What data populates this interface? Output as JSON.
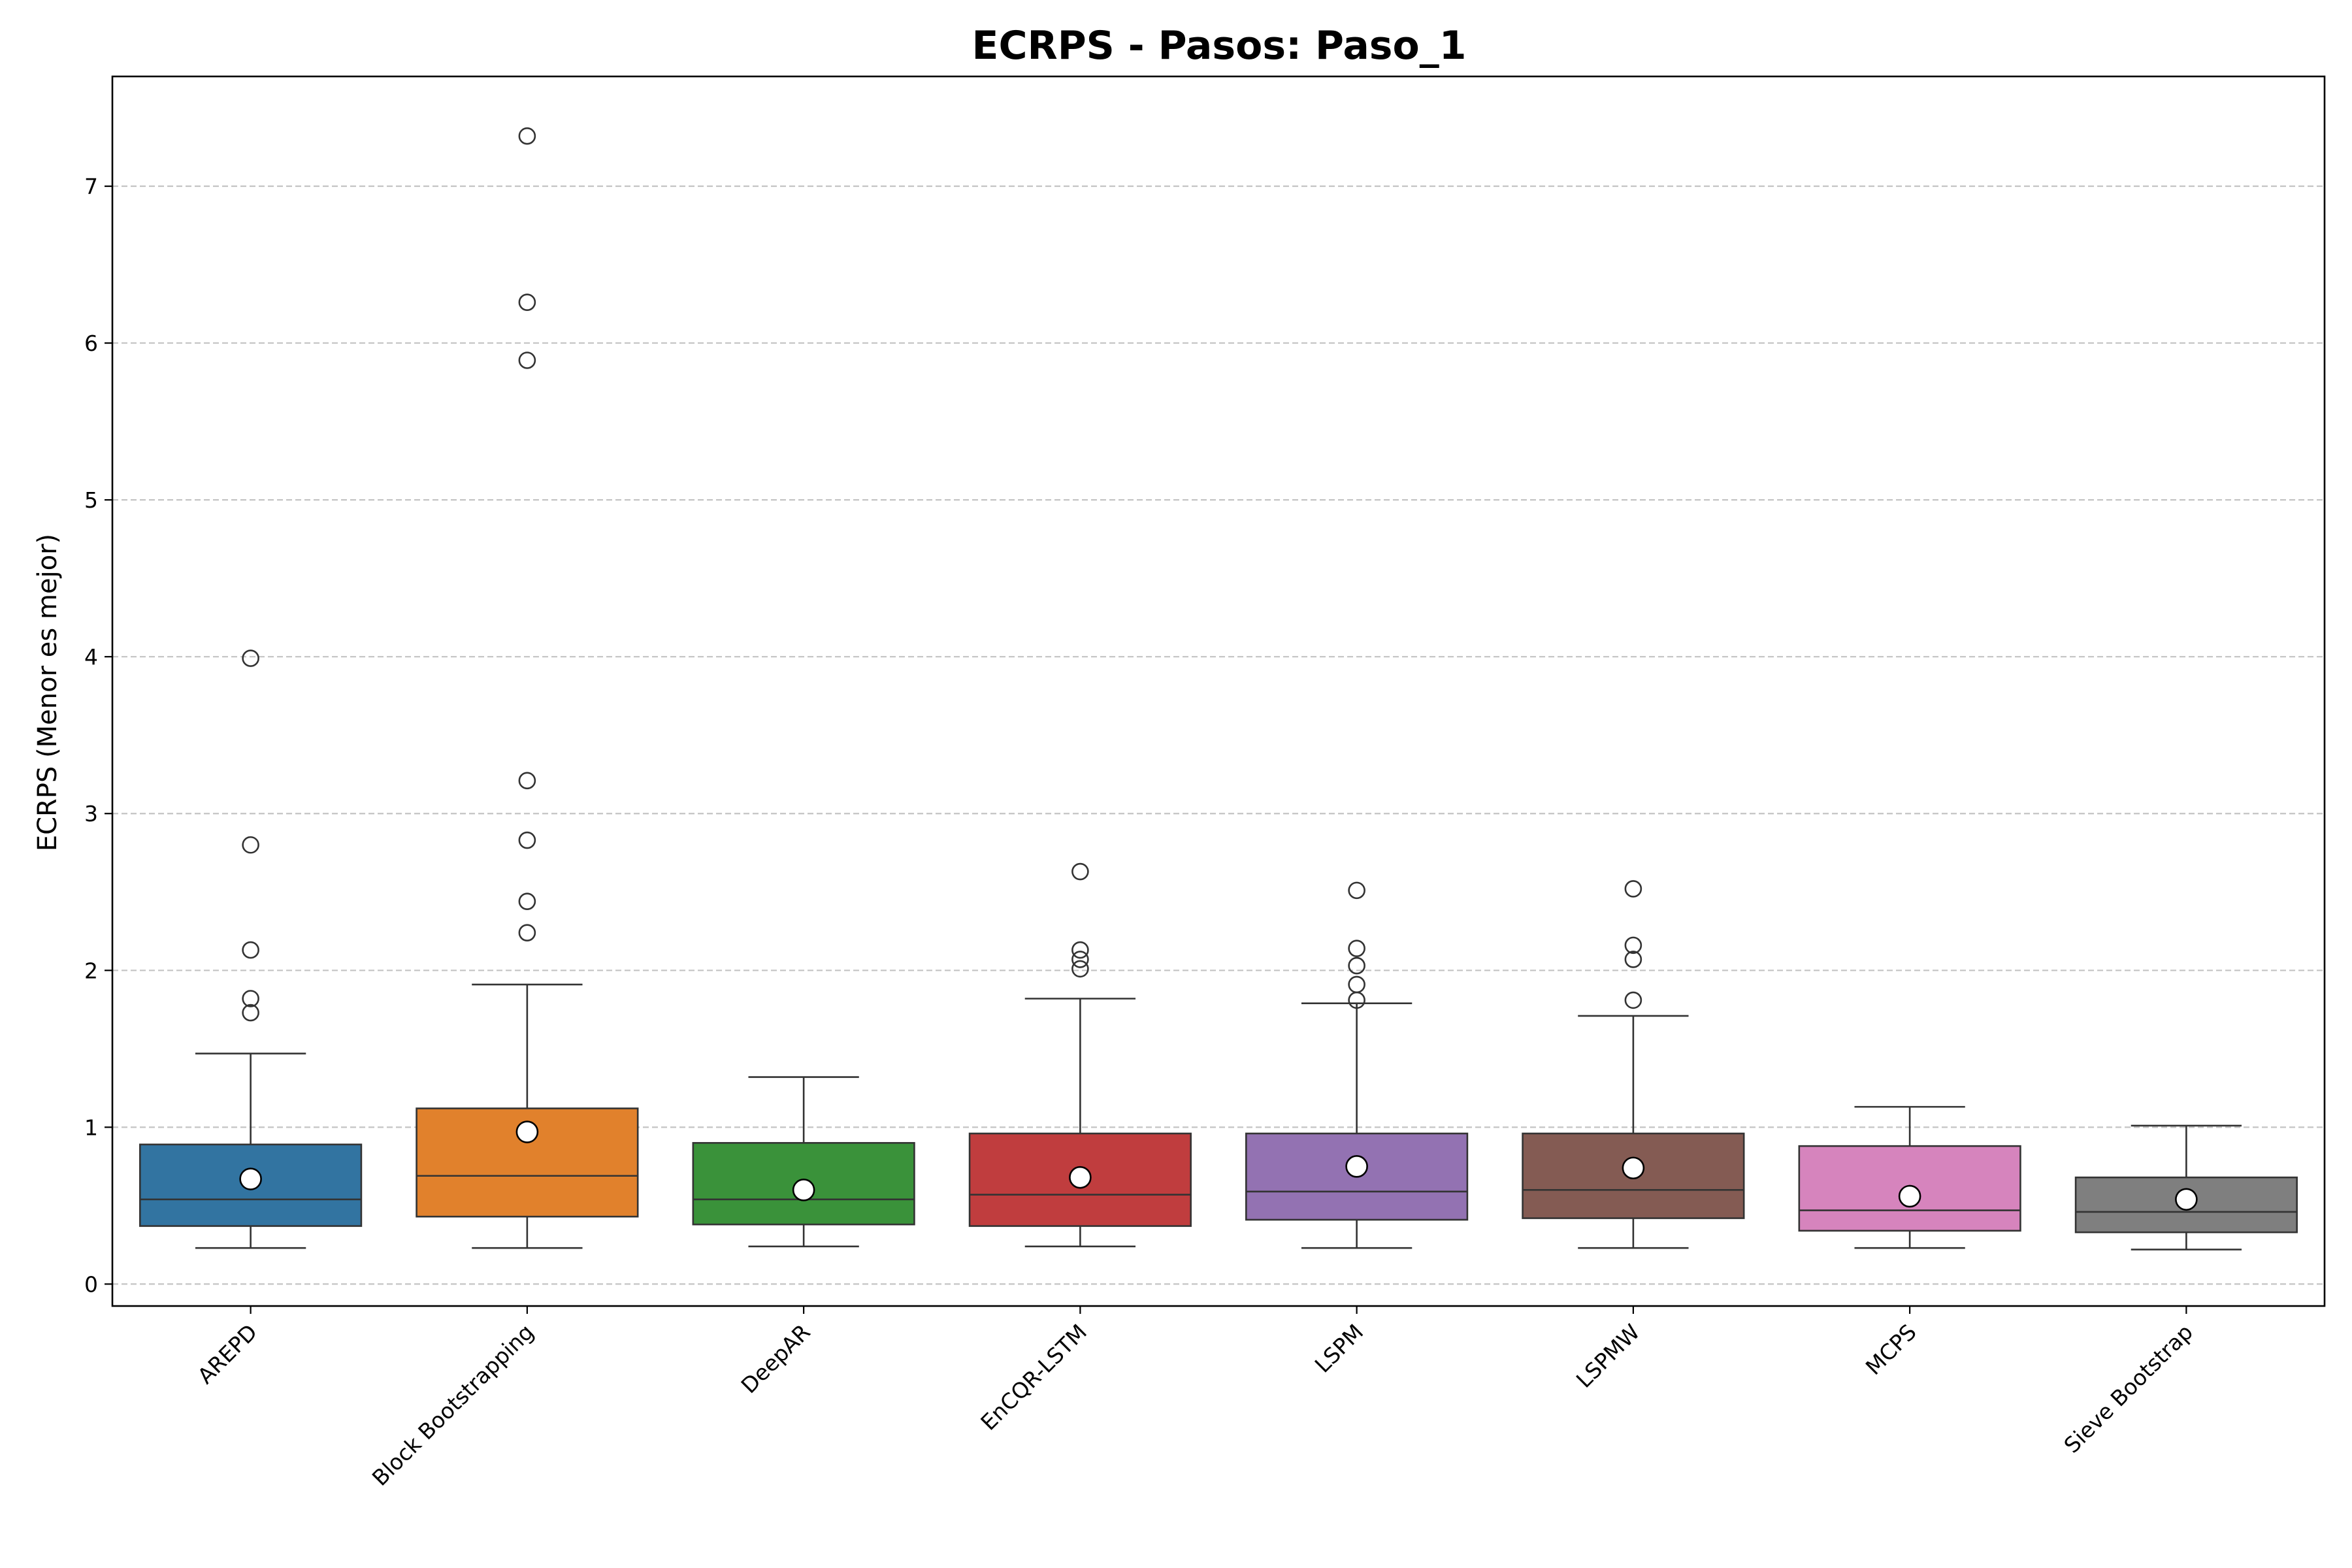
{
  "chart_data": {
    "type": "box",
    "title": "ECRPS - Pasos: Paso_1",
    "xlabel": "",
    "ylabel": "ECRPS (Menor es mejor)",
    "ylim": [
      -0.14,
      7.7
    ],
    "yticks": [
      0,
      1,
      2,
      3,
      4,
      5,
      6,
      7
    ],
    "grid": "y-dashed",
    "legend": "none",
    "categories": [
      "AREPD",
      "Block Bootstrapping",
      "DeepAR",
      "EnCQR-LSTM",
      "LSPM",
      "LSPMW",
      "MCPS",
      "Sieve Bootstrap"
    ],
    "colors": [
      "#3274a1",
      "#e1812c",
      "#3a923a",
      "#c03d3e",
      "#9372b2",
      "#845b53",
      "#d684bd",
      "#7f7f7f"
    ],
    "boxes": [
      {
        "whislo": 0.23,
        "q1": 0.37,
        "med": 0.54,
        "q3": 0.89,
        "whishi": 1.47,
        "mean": 0.67,
        "fliers": [
          1.73,
          1.82,
          2.13,
          2.8,
          3.99
        ]
      },
      {
        "whislo": 0.23,
        "q1": 0.43,
        "med": 0.69,
        "q3": 1.12,
        "whishi": 1.91,
        "mean": 0.97,
        "fliers": [
          2.24,
          2.44,
          2.83,
          3.21,
          5.89,
          6.26,
          7.32
        ]
      },
      {
        "whislo": 0.24,
        "q1": 0.38,
        "med": 0.54,
        "q3": 0.9,
        "whishi": 1.32,
        "mean": 0.6,
        "fliers": []
      },
      {
        "whislo": 0.24,
        "q1": 0.37,
        "med": 0.57,
        "q3": 0.96,
        "whishi": 1.82,
        "mean": 0.68,
        "fliers": [
          2.01,
          2.07,
          2.13,
          2.63
        ]
      },
      {
        "whislo": 0.23,
        "q1": 0.41,
        "med": 0.59,
        "q3": 0.96,
        "whishi": 1.79,
        "mean": 0.75,
        "fliers": [
          1.81,
          1.91,
          2.03,
          2.14,
          2.51
        ]
      },
      {
        "whislo": 0.23,
        "q1": 0.42,
        "med": 0.6,
        "q3": 0.96,
        "whishi": 1.71,
        "mean": 0.74,
        "fliers": [
          1.81,
          2.07,
          2.16,
          2.52
        ]
      },
      {
        "whislo": 0.23,
        "q1": 0.34,
        "med": 0.47,
        "q3": 0.88,
        "whishi": 1.13,
        "mean": 0.56,
        "fliers": []
      },
      {
        "whislo": 0.22,
        "q1": 0.33,
        "med": 0.46,
        "q3": 0.68,
        "whishi": 1.01,
        "mean": 0.54,
        "fliers": []
      }
    ]
  }
}
